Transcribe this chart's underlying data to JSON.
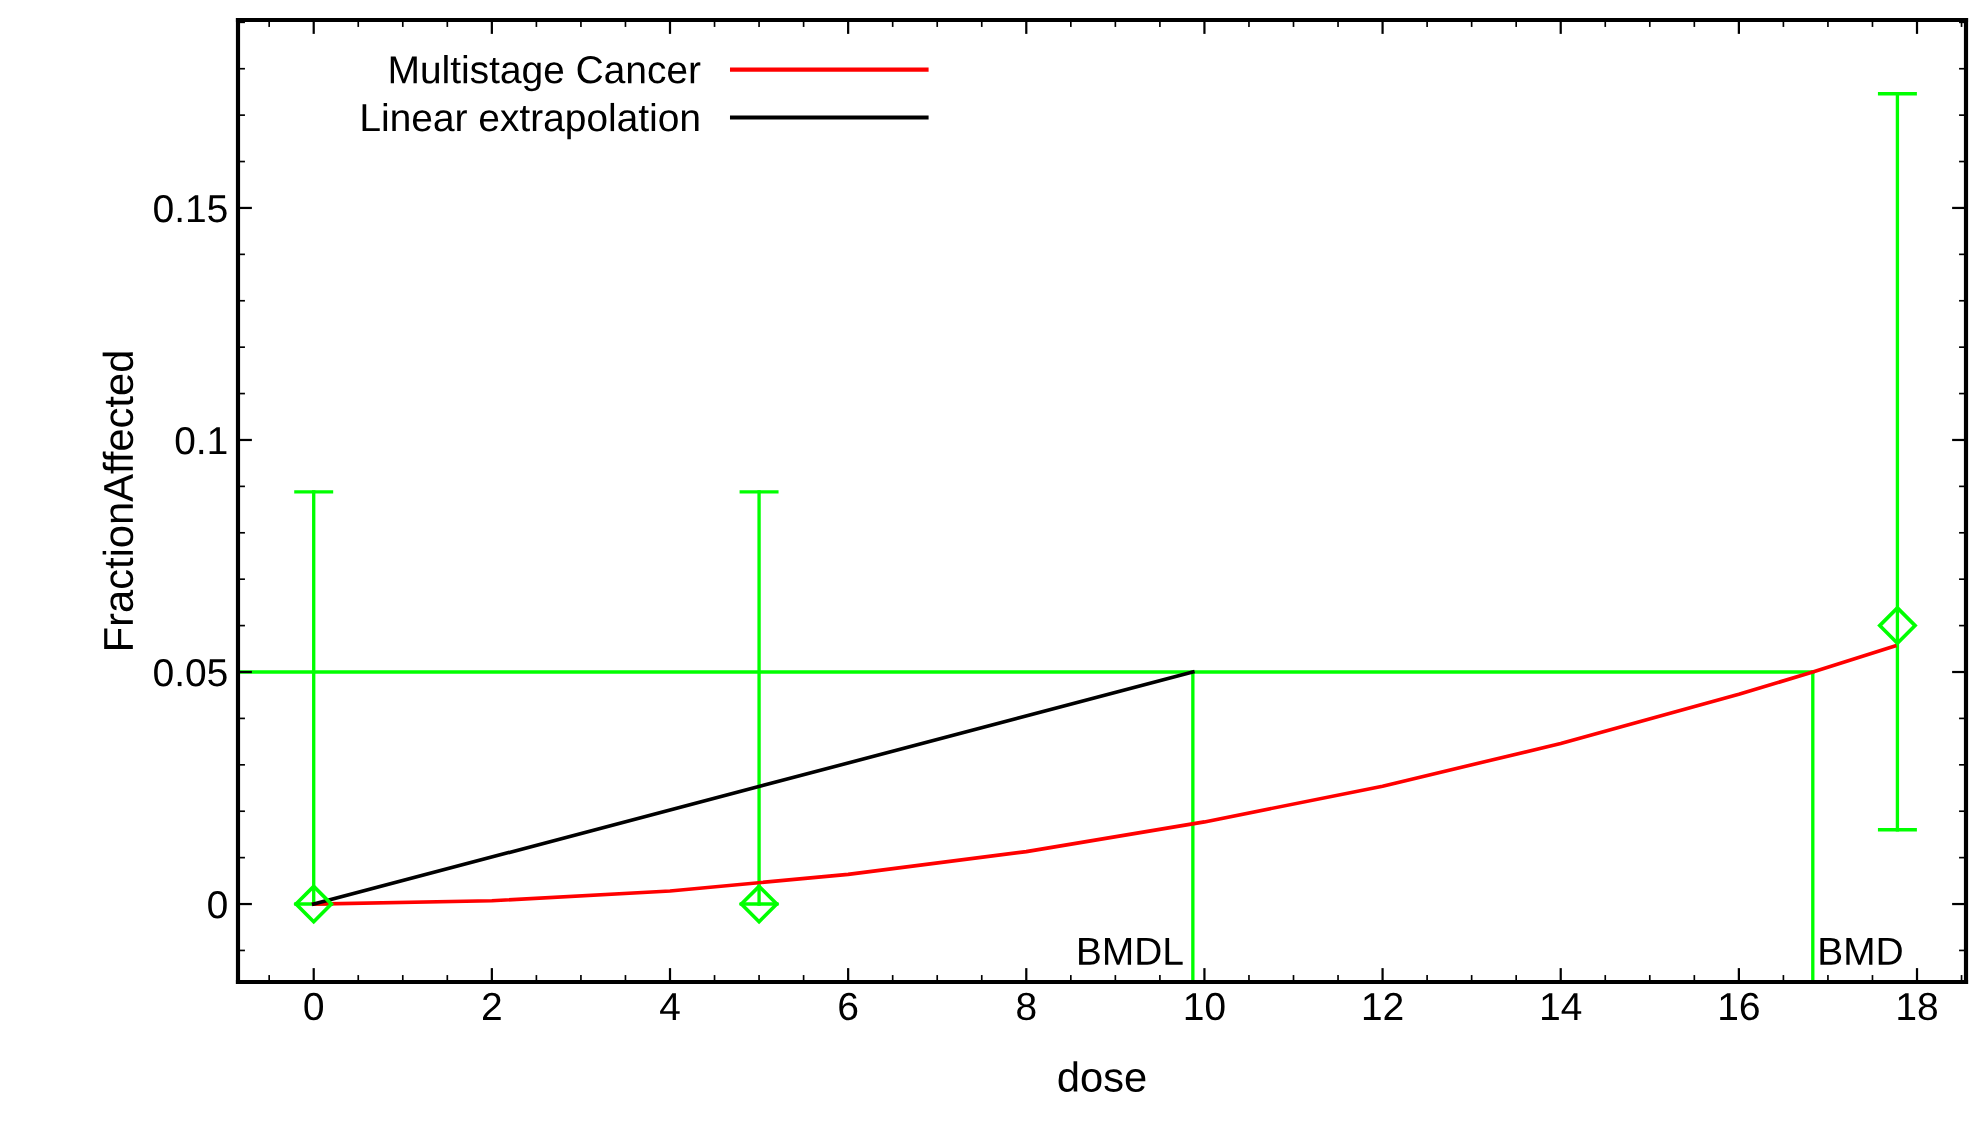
{
  "chart_data": {
    "type": "line",
    "xlabel": "dose",
    "ylabel": "FractionAffected",
    "xlim": [
      -0.85,
      18.55
    ],
    "ylim": [
      -0.0168,
      0.1905
    ],
    "xticks": [
      0,
      2,
      4,
      6,
      8,
      10,
      12,
      14,
      16,
      18
    ],
    "yticks": [
      0,
      0.05,
      0.1,
      0.15
    ],
    "legend": "top left",
    "grid": false,
    "series": [
      {
        "name": "Multistage Cancer",
        "color": "#ff0000",
        "marker": "none",
        "x": [
          0,
          2,
          4,
          6,
          8,
          10,
          12,
          14,
          16,
          16.83,
          17.75
        ],
        "values": [
          0.0,
          0.0007,
          0.0028,
          0.0064,
          0.0113,
          0.0177,
          0.0254,
          0.0346,
          0.0452,
          0.05,
          0.0556
        ]
      },
      {
        "name": "Linear extrapolation",
        "color": "#000000",
        "marker": "none",
        "x": [
          0,
          9.87
        ],
        "values": [
          0.0,
          0.05
        ]
      },
      {
        "type": "scatter",
        "color": "#00ff00",
        "marker": "diamond",
        "x": [
          0,
          5,
          17.78
        ],
        "values": [
          0.0,
          0.0,
          0.06
        ],
        "errors": [
          [
            0.0,
            0.0888
          ],
          [
            0.0,
            0.0888
          ],
          [
            0.016,
            0.1746
          ]
        ]
      }
    ],
    "ref_lines": [
      {
        "axis": "y",
        "value": 0.05,
        "color": "#00ff00"
      },
      {
        "axis": "x",
        "value": 9.87,
        "label": "BMDL",
        "color": "#00ff00"
      },
      {
        "axis": "x",
        "value": 16.83,
        "label": "BMD",
        "color": "#00ff00"
      }
    ]
  }
}
